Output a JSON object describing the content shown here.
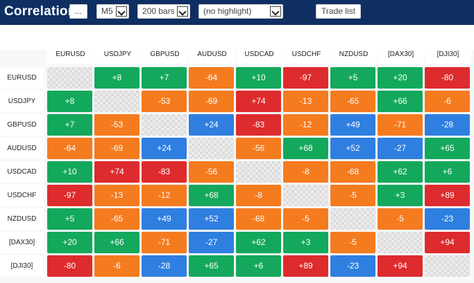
{
  "title": "Correlation",
  "toolbar": {
    "dots_label": "...",
    "timeframe": "M5",
    "bars": "200 bars",
    "highlight": "(no highlight)",
    "trade_list_label": "Trade list"
  },
  "symbols": [
    "EURUSD",
    "USDJPY",
    "GBPUSD",
    "AUDUSD",
    "USDCAD",
    "USDCHF",
    "NZDUSD",
    "[DAX30]",
    "[DJI30]"
  ],
  "matrix": [
    [
      null,
      8,
      7,
      -64,
      10,
      -97,
      5,
      20,
      -80
    ],
    [
      8,
      null,
      -53,
      -69,
      74,
      -13,
      -65,
      66,
      -6
    ],
    [
      7,
      -53,
      null,
      24,
      -83,
      -12,
      49,
      -71,
      -28
    ],
    [
      -64,
      -69,
      24,
      null,
      -56,
      68,
      52,
      -27,
      65
    ],
    [
      10,
      74,
      -83,
      -56,
      null,
      -8,
      -68,
      62,
      6
    ],
    [
      -97,
      -13,
      -12,
      68,
      -8,
      null,
      -5,
      3,
      89
    ],
    [
      5,
      -65,
      49,
      52,
      -68,
      -5,
      null,
      -5,
      -23
    ],
    [
      20,
      66,
      -71,
      -27,
      62,
      3,
      -5,
      null,
      94
    ],
    [
      -80,
      -6,
      -28,
      65,
      6,
      89,
      -23,
      94,
      null
    ]
  ],
  "colors": {
    "green": "#14a85c",
    "orange": "#f57b1f",
    "red": "#de2b2d",
    "blue": "#2f7fe0"
  }
}
